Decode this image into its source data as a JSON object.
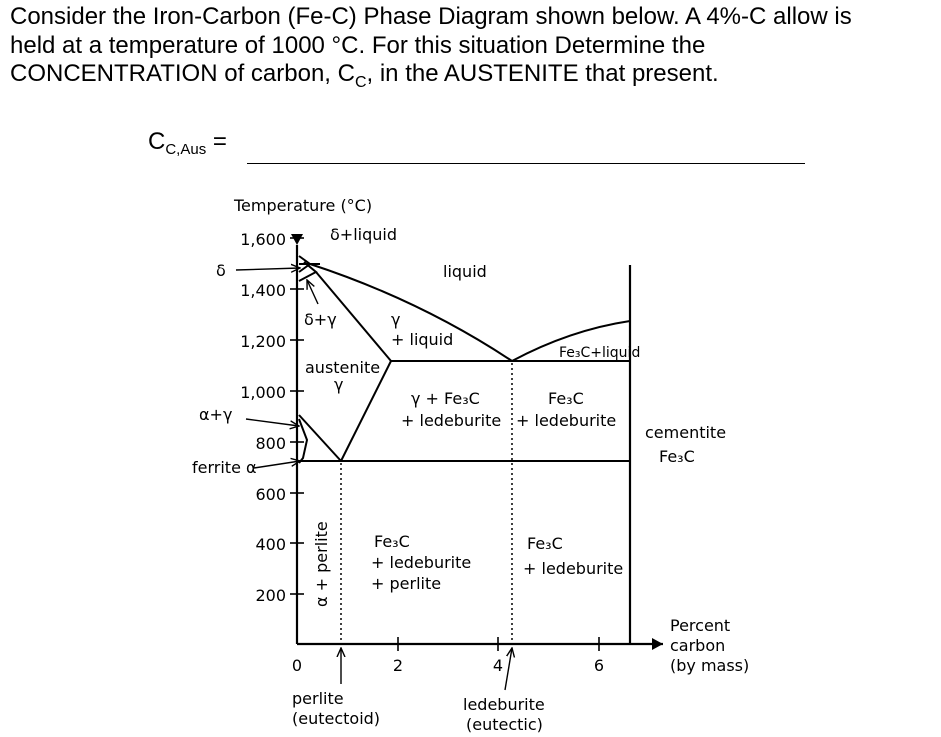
{
  "question": {
    "line1": "Consider the Iron-Carbon (Fe-C) Phase Diagram shown below. A 4%-C allow is",
    "line2": "held at a temperature of 1000 °C. For this situation Determine the",
    "line3_pre": "CONCENTRATION of carbon, C",
    "line3_sub": "C",
    "line3_post": ", in the AUSTENITE that present."
  },
  "answer": {
    "label_main": "C",
    "label_sub": "C,Aus",
    "label_eq": " =",
    "value": ""
  },
  "diagram": {
    "y_axis_title": "Temperature (°C)",
    "y_ticks": [
      "1,600",
      "1,400",
      "1,200",
      "1,000",
      "800",
      "600",
      "400",
      "200"
    ],
    "x_ticks": [
      "0",
      "2",
      "4",
      "6"
    ],
    "x_axis_title": [
      "Percent",
      "carbon",
      "(by mass)"
    ],
    "regions": {
      "delta_liquid": "δ+liquid",
      "liquid": "liquid",
      "delta_gamma": "δ+γ",
      "gamma_liquid_1": "γ",
      "gamma_liquid_2": "+ liquid",
      "fe3c_liquid": "Fe₃C+liquid",
      "austenite": "austenite",
      "austenite_gamma": "γ",
      "gamma_fe3c_1": "γ + Fe₃C",
      "gamma_fe3c_2": "+ ledeburite",
      "fe3c_led_1": "Fe₃C",
      "fe3c_led_2": "+ ledeburite",
      "cementite_1": "cementite",
      "cementite_2": "Fe₃C",
      "alpha_perlite": "α + perlite",
      "low_left_1": "Fe₃C",
      "low_left_2": "+ ledeburite",
      "low_left_3": "+ perlite",
      "low_right_1": "Fe₃C",
      "low_right_2": "+ ledeburite"
    },
    "side_labels": {
      "delta": "δ",
      "alpha_gamma": "α+γ",
      "ferrite": "ferrite α"
    },
    "bottom_labels": {
      "perlite_1": "perlite",
      "perlite_2": "(eutectoid)",
      "ledeburite_1": "ledeburite",
      "ledeburite_2": "(eutectic)"
    }
  }
}
